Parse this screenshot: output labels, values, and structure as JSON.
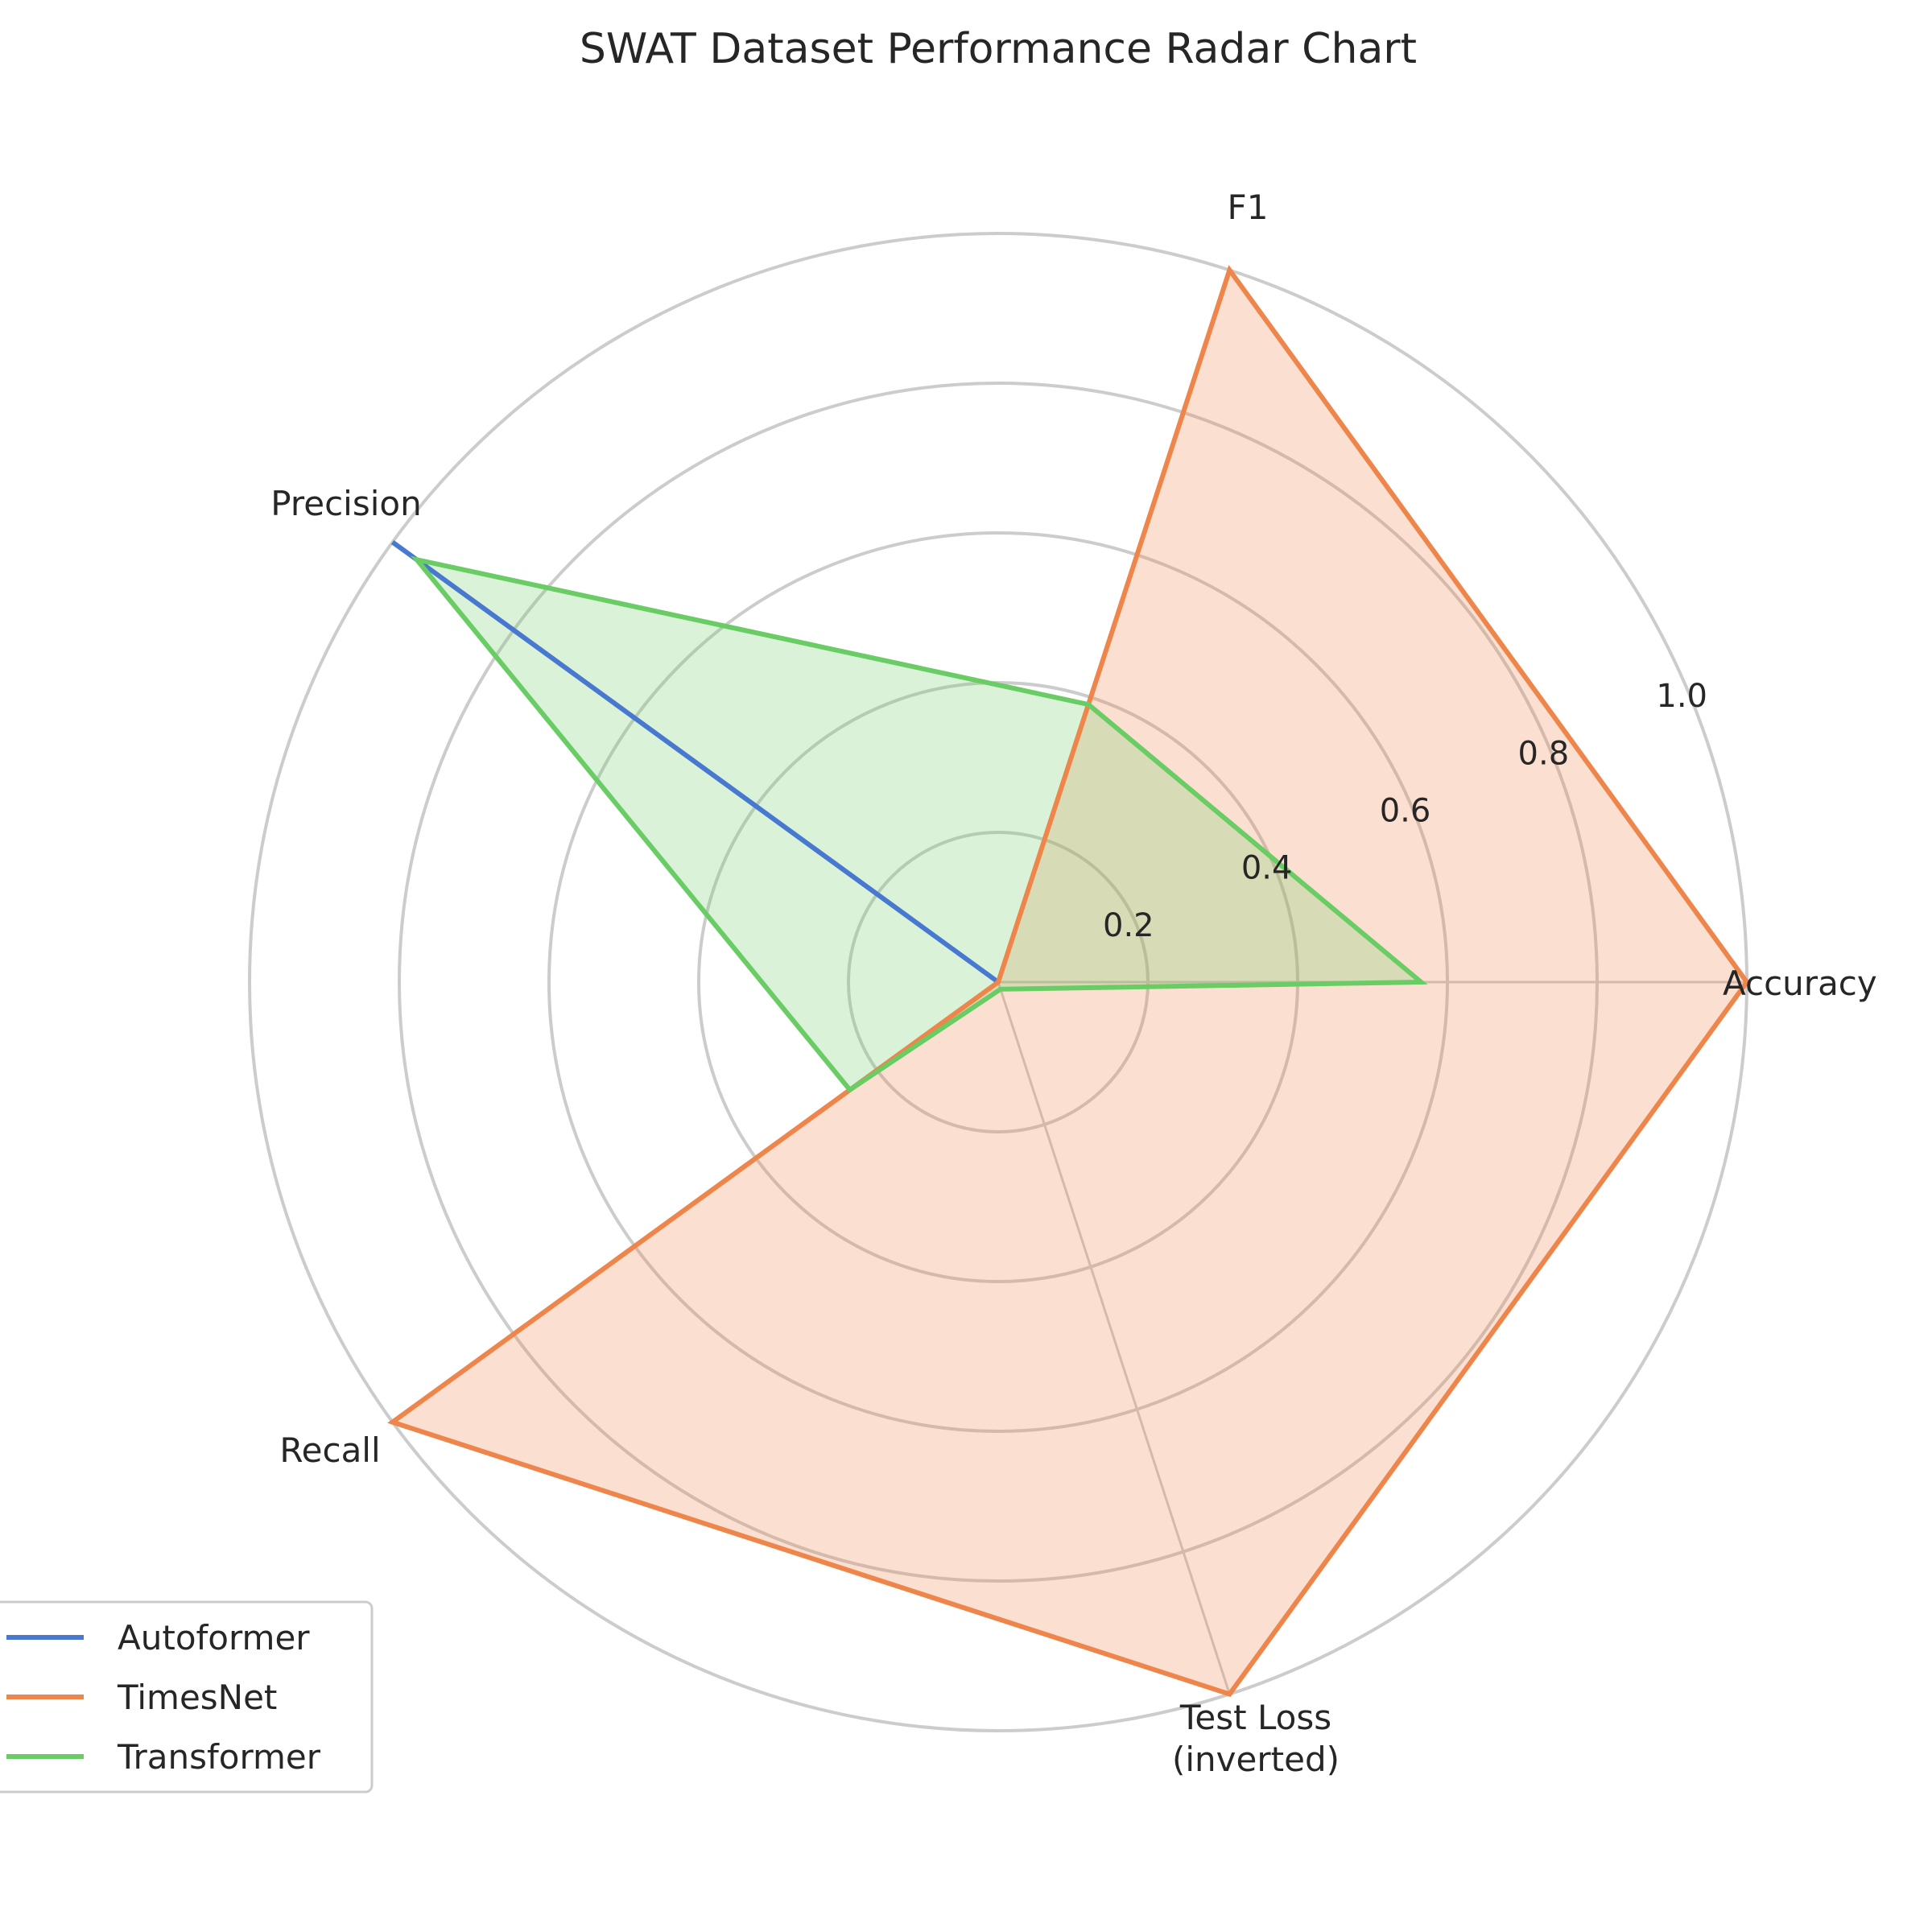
{
  "chart_data": {
    "type": "radar",
    "title": "SWAT Dataset Performance Radar Chart",
    "axes": [
      "Accuracy",
      "F1",
      "Precision",
      "Recall",
      "Test Loss\n(inverted)"
    ],
    "rlim": [
      0,
      1.0
    ],
    "rticks": [
      "0.2",
      "0.4",
      "0.6",
      "0.8",
      "1.0"
    ],
    "grid": true,
    "legend_position": "lower-left",
    "series": [
      {
        "name": "Autoformer",
        "color": "#4878d0",
        "fill": false,
        "values": [
          0.0,
          0.0,
          1.0,
          0.0,
          0.0
        ]
      },
      {
        "name": "TimesNet",
        "color": "#ee854a",
        "fill": true,
        "values": [
          1.0,
          1.0,
          0.0,
          1.0,
          1.0
        ]
      },
      {
        "name": "Transformer",
        "color": "#6acc64",
        "fill": true,
        "values": [
          0.565,
          0.39,
          0.96,
          0.245,
          0.01
        ]
      }
    ]
  }
}
